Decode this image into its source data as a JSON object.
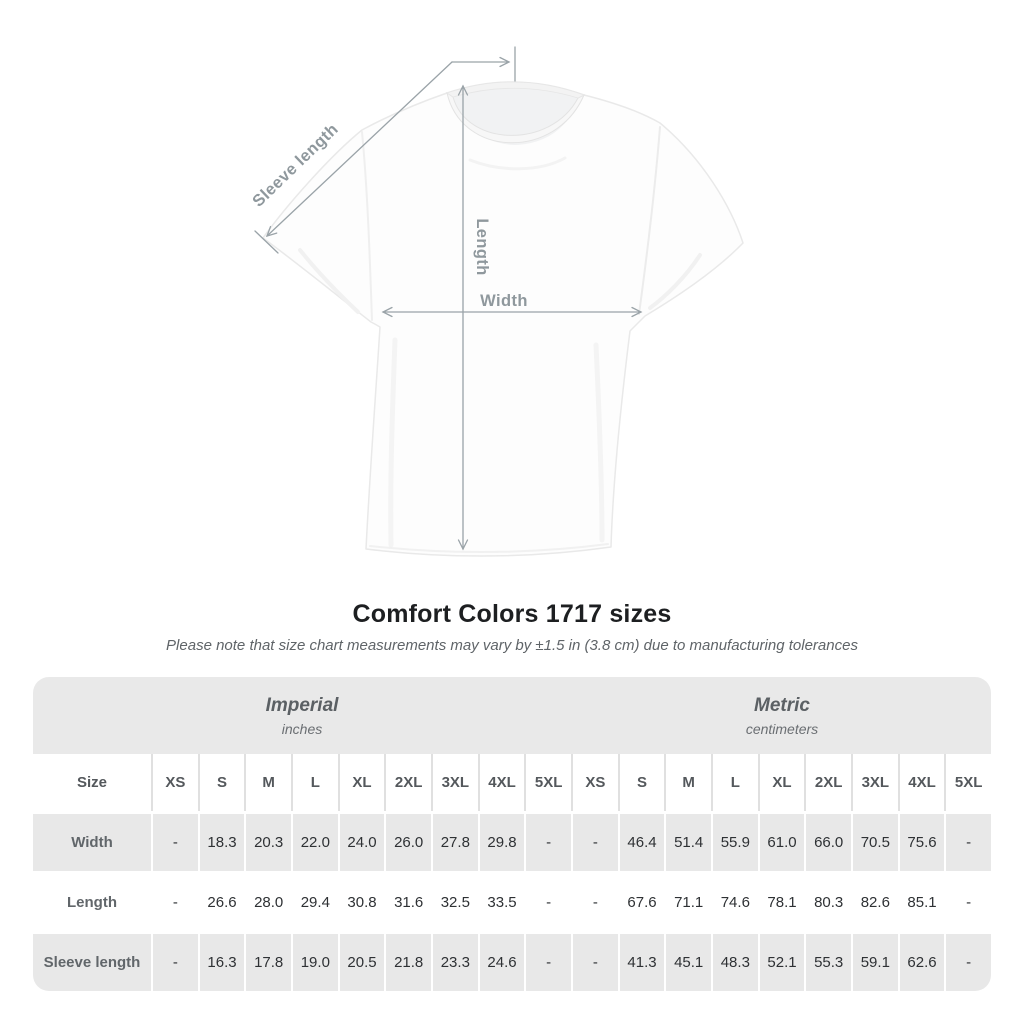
{
  "title": "Comfort Colors 1717 sizes",
  "subtitle": "Please note that size chart measurements may vary by ±1.5 in (3.8 cm) due to manufacturing tolerances",
  "diagram": {
    "sleeve_length_label": "Sleeve length",
    "length_label": "Length",
    "width_label": "Width"
  },
  "chart_data": {
    "type": "table",
    "title": "Comfort Colors 1717 sizes",
    "note": "Measurements may vary by ±1.5 in (3.8 cm) due to manufacturing tolerances",
    "sections": [
      {
        "label": "Imperial",
        "unit": "inches"
      },
      {
        "label": "Metric",
        "unit": "centimeters"
      }
    ],
    "corner_label": "Size",
    "size_columns": [
      "XS",
      "S",
      "M",
      "L",
      "XL",
      "2XL",
      "3XL",
      "4XL",
      "5XL"
    ],
    "rows": [
      {
        "label": "Width",
        "imperial": [
          "-",
          "18.3",
          "20.3",
          "22.0",
          "24.0",
          "26.0",
          "27.8",
          "29.8",
          "-"
        ],
        "metric": [
          "-",
          "46.4",
          "51.4",
          "55.9",
          "61.0",
          "66.0",
          "70.5",
          "75.6",
          "-"
        ]
      },
      {
        "label": "Length",
        "imperial": [
          "-",
          "26.6",
          "28.0",
          "29.4",
          "30.8",
          "31.6",
          "32.5",
          "33.5",
          "-"
        ],
        "metric": [
          "-",
          "67.6",
          "71.1",
          "74.6",
          "78.1",
          "80.3",
          "82.6",
          "85.1",
          "-"
        ]
      },
      {
        "label": "Sleeve length",
        "imperial": [
          "-",
          "16.3",
          "17.8",
          "19.0",
          "20.5",
          "21.8",
          "23.3",
          "24.6",
          "-"
        ],
        "metric": [
          "-",
          "41.3",
          "45.1",
          "48.3",
          "52.1",
          "55.3",
          "59.1",
          "62.6",
          "-"
        ]
      }
    ]
  },
  "colors": {
    "band_gray": "#e9e9e9",
    "row_shade_gray": "#e8e8e8",
    "annotation_gray": "#9aa3a8",
    "title_text": "#1d1f21",
    "muted_text": "#5f6468"
  }
}
